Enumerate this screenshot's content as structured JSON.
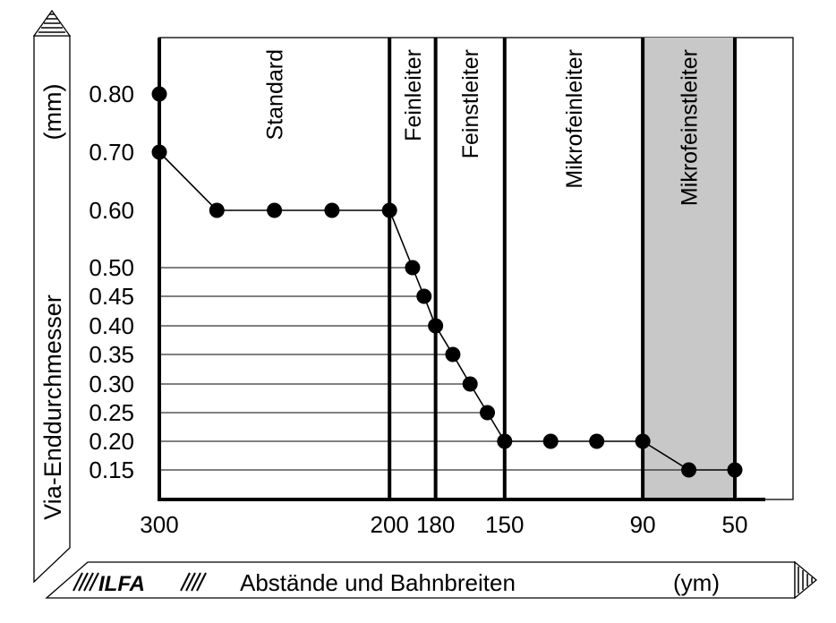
{
  "chart_data": {
    "type": "line",
    "ylabel": "Via-Enddurchmesser",
    "yunit": "(mm)",
    "xlabel": "Abstände und Bahnbreiten",
    "xunit": "(ym)",
    "logo": "ILFA",
    "x_ticks": [
      {
        "label": "300",
        "slot": 0
      },
      {
        "label": "200",
        "slot": 4
      },
      {
        "label": "180",
        "slot": 4.8
      },
      {
        "label": "150",
        "slot": 6
      },
      {
        "label": "90",
        "slot": 8.4
      },
      {
        "label": "50",
        "slot": 10
      }
    ],
    "y_ticks": [
      "0.80",
      "0.70",
      "0.60",
      "0.50",
      "0.45",
      "0.40",
      "0.35",
      "0.30",
      "0.25",
      "0.20",
      "0.15"
    ],
    "y_tick_values": [
      0.8,
      0.7,
      0.6,
      0.5,
      0.45,
      0.4,
      0.35,
      0.3,
      0.25,
      0.2,
      0.15
    ],
    "regions": [
      {
        "label": "Standard",
        "from": 0,
        "to": 4,
        "shaded": false
      },
      {
        "label": "Feinleiter",
        "from": 4,
        "to": 4.8,
        "shaded": false
      },
      {
        "label": "Feinstleiter",
        "from": 4.8,
        "to": 6,
        "shaded": false
      },
      {
        "label": "Mikrofeinleiter",
        "from": 6,
        "to": 8.4,
        "shaded": false
      },
      {
        "label": "Mikrofeinstleiter",
        "from": 8.4,
        "to": 10,
        "shaded": true
      }
    ],
    "series": [
      {
        "points": [
          {
            "x": 0,
            "y": 0.7
          },
          {
            "x": 1,
            "y": 0.6
          },
          {
            "x": 2,
            "y": 0.6
          },
          {
            "x": 3,
            "y": 0.6
          },
          {
            "x": 4,
            "y": 0.6
          },
          {
            "x": 4.4,
            "y": 0.5
          },
          {
            "x": 4.6,
            "y": 0.45
          },
          {
            "x": 4.8,
            "y": 0.4
          },
          {
            "x": 5.1,
            "y": 0.35
          },
          {
            "x": 5.4,
            "y": 0.3
          },
          {
            "x": 5.7,
            "y": 0.25
          },
          {
            "x": 6,
            "y": 0.2
          },
          {
            "x": 6.8,
            "y": 0.2
          },
          {
            "x": 7.6,
            "y": 0.2
          },
          {
            "x": 8.4,
            "y": 0.2
          },
          {
            "x": 9.2,
            "y": 0.15
          },
          {
            "x": 10,
            "y": 0.15
          }
        ]
      }
    ],
    "extra_points": [
      {
        "x": 0,
        "y": 0.8
      }
    ],
    "gridlines_y": [
      0.5,
      0.45,
      0.4,
      0.35,
      0.3,
      0.25,
      0.2,
      0.15
    ],
    "grid": true
  }
}
